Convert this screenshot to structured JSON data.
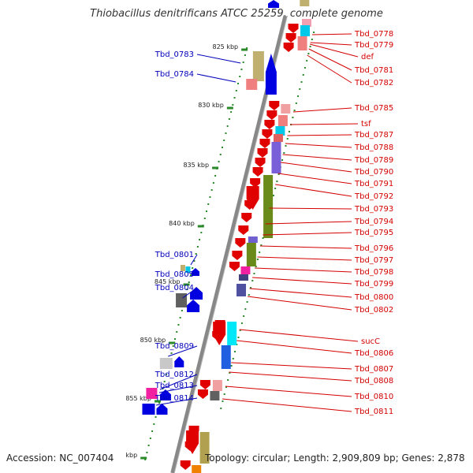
{
  "title": "Thiobacillus denitrificans ATCC 25259, complete genome",
  "footer": {
    "accession": "Accession: NC_007404",
    "topology": "Topology: circular; Length: 2,909,809 bp; Genes: 2,878"
  },
  "colors": {
    "reverse_label": "#d40000",
    "forward_label": "#0000bb",
    "ruler": "#2a8a2a",
    "backbone": "#888888"
  },
  "kbp_ticks": [
    "825 kbp",
    "830 kbp",
    "835 kbp",
    "840 kbp",
    "845 kbp",
    "850 kbp",
    "855 kbp",
    "kbp"
  ],
  "right_labels": [
    "Tbd_0778",
    "Tbd_0779",
    "def",
    "Tbd_0781",
    "Tbd_0782",
    "Tbd_0785",
    "tsf",
    "Tbd_0787",
    "Tbd_0788",
    "Tbd_0789",
    "Tbd_0790",
    "Tbd_0791",
    "Tbd_0792",
    "Tbd_0793",
    "Tbd_0794",
    "Tbd_0795",
    "Tbd_0796",
    "Tbd_0797",
    "Tbd_0798",
    "Tbd_0799",
    "Tbd_0800",
    "Tbd_0802",
    "sucC",
    "Tbd_0806",
    "Tbd_0807",
    "Tbd_0808",
    "Tbd_0810",
    "Tbd_0811"
  ],
  "left_labels": [
    "Tbd_0783",
    "Tbd_0784",
    "Tbd_0801",
    "Tbd_0803",
    "Tbd_0804",
    "Tbd_0809",
    "Tbd_0812",
    "Tbd_0813",
    "Tbd_0814"
  ]
}
